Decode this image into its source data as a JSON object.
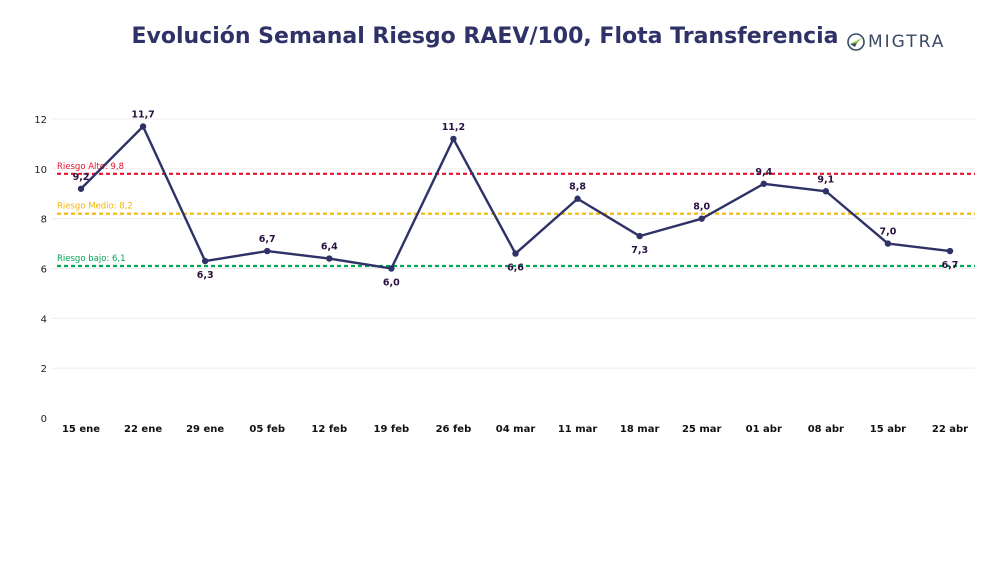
{
  "chart_data": {
    "type": "line",
    "title": "Evolución Semanal Riesgo RAEV/100, Flota Transferencia",
    "categories": [
      "15 ene",
      "22 ene",
      "29 ene",
      "05 feb",
      "12 feb",
      "19 feb",
      "26 feb",
      "04 mar",
      "11 mar",
      "18 mar",
      "25 mar",
      "01 abr",
      "08 abr",
      "15 abr",
      "22 abr"
    ],
    "values": [
      9.2,
      11.7,
      6.3,
      6.7,
      6.4,
      6.0,
      11.2,
      6.6,
      8.8,
      7.3,
      8.0,
      9.4,
      9.1,
      7.0,
      6.7
    ],
    "value_labels": [
      "9,2",
      "11,7",
      "6,3",
      "6,7",
      "6,4",
      "6,0",
      "11,2",
      "6,6",
      "8,8",
      "7,3",
      "8,0",
      "9,4",
      "9,1",
      "7,0",
      "6,7"
    ],
    "label_position": [
      "above",
      "above",
      "below",
      "above",
      "above",
      "below",
      "above",
      "below",
      "above",
      "below",
      "above",
      "above",
      "above",
      "above",
      "below"
    ],
    "ylim": [
      0,
      12
    ],
    "yticks": [
      0,
      2,
      4,
      6,
      8,
      10,
      12
    ],
    "grid": true,
    "line_color": "#2e3266",
    "thresholds": [
      {
        "label": "Riesgo Alto: 9,8",
        "value": 9.8,
        "color": "#e8112d"
      },
      {
        "label": "Riesgo Medio: 8,2",
        "value": 8.2,
        "color": "#f2b705"
      },
      {
        "label": "Riesgo bajo: 6,1",
        "value": 6.1,
        "color": "#00a651"
      }
    ]
  },
  "logo": {
    "text": "MIGTRA",
    "icon": "compass-icon"
  }
}
